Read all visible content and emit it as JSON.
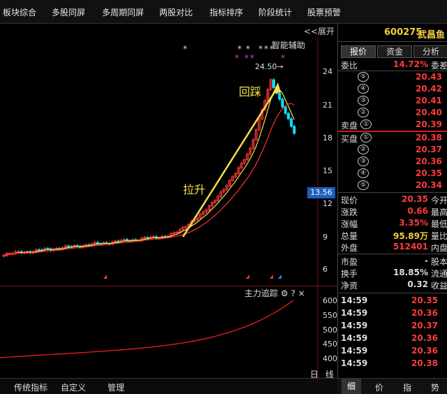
{
  "menu": [
    "板块综合",
    "多股同屏",
    "多周期同屏",
    "两股对比",
    "指标排序",
    "阶段统计",
    "股票预警"
  ],
  "chart": {
    "expand_label": "<<展开",
    "assist_label": "智能辅助",
    "peak_label": "24.50→",
    "annotation_left": "拉升",
    "annotation_right": "回踩",
    "current_price": "13.56",
    "ticks": [
      "24",
      "21",
      "18",
      "15",
      "12",
      "9",
      "6"
    ],
    "stars_label_1": "*",
    "stars_label_2": "* * ****",
    "stars_label_3": "* *** *",
    "colors": {
      "up": "#ff3b3b",
      "down": "#00e5ff",
      "ma_short": "#f2e14a",
      "ma_long": "#ff3030",
      "arrow": "#f5e04a"
    }
  },
  "sub_chart": {
    "title": "主力追踪",
    "gear_icon": "⚙",
    "help": "?",
    "close": "×",
    "ticks": [
      "600",
      "550",
      "500",
      "450",
      "400"
    ],
    "period_day": "日",
    "period_line": "线"
  },
  "bottom_tabs": [
    "传统指标",
    "自定义",
    "管理"
  ],
  "stock": {
    "code": "600275",
    "name": "武昌鱼"
  },
  "panel_tabs": [
    "报价",
    "资金",
    "分析"
  ],
  "quote": {
    "webi_label": "委比",
    "webi_value": "14.72%",
    "webi_extra": "委差",
    "sell_label": "卖盘",
    "buy_label": "买盘",
    "sell": [
      {
        "n": "⑤",
        "price": "20.43"
      },
      {
        "n": "④",
        "price": "20.42"
      },
      {
        "n": "③",
        "price": "20.41"
      },
      {
        "n": "②",
        "price": "20.40"
      },
      {
        "n": "①",
        "price": "20.39"
      }
    ],
    "buy": [
      {
        "n": "①",
        "price": "20.38"
      },
      {
        "n": "②",
        "price": "20.37"
      },
      {
        "n": "③",
        "price": "20.36"
      },
      {
        "n": "④",
        "price": "20.35"
      },
      {
        "n": "⑤",
        "price": "20.34"
      }
    ],
    "stats": [
      {
        "label": "现价",
        "value": "20.35",
        "extra": "今开",
        "color": "red"
      },
      {
        "label": "涨跌",
        "value": "0.66",
        "extra": "最高",
        "color": "red"
      },
      {
        "label": "涨幅",
        "value": "3.35%",
        "extra": "最低",
        "color": "red"
      },
      {
        "label": "总量",
        "value": "95.89万",
        "extra": "量比",
        "color": "yellow"
      },
      {
        "label": "外盘",
        "value": "512401",
        "extra": "内盘",
        "color": "red"
      }
    ],
    "stats2": [
      {
        "label": "市盈",
        "value": "-",
        "extra": "股本",
        "color": "white"
      },
      {
        "label": "换手",
        "value": "18.85%",
        "extra": "流通",
        "color": "white"
      },
      {
        "label": "净资",
        "value": "0.32",
        "extra": "收益",
        "color": "white"
      }
    ],
    "ticks": [
      {
        "time": "14:59",
        "price": "20.35"
      },
      {
        "time": "14:59",
        "price": "20.36"
      },
      {
        "time": "14:59",
        "price": "20.37"
      },
      {
        "time": "14:59",
        "price": "20.36"
      },
      {
        "time": "14:59",
        "price": "20.36"
      },
      {
        "time": "14:59",
        "price": "20.38"
      }
    ]
  },
  "right_bottom_tabs": [
    "细",
    "价",
    "指",
    "势"
  ]
}
